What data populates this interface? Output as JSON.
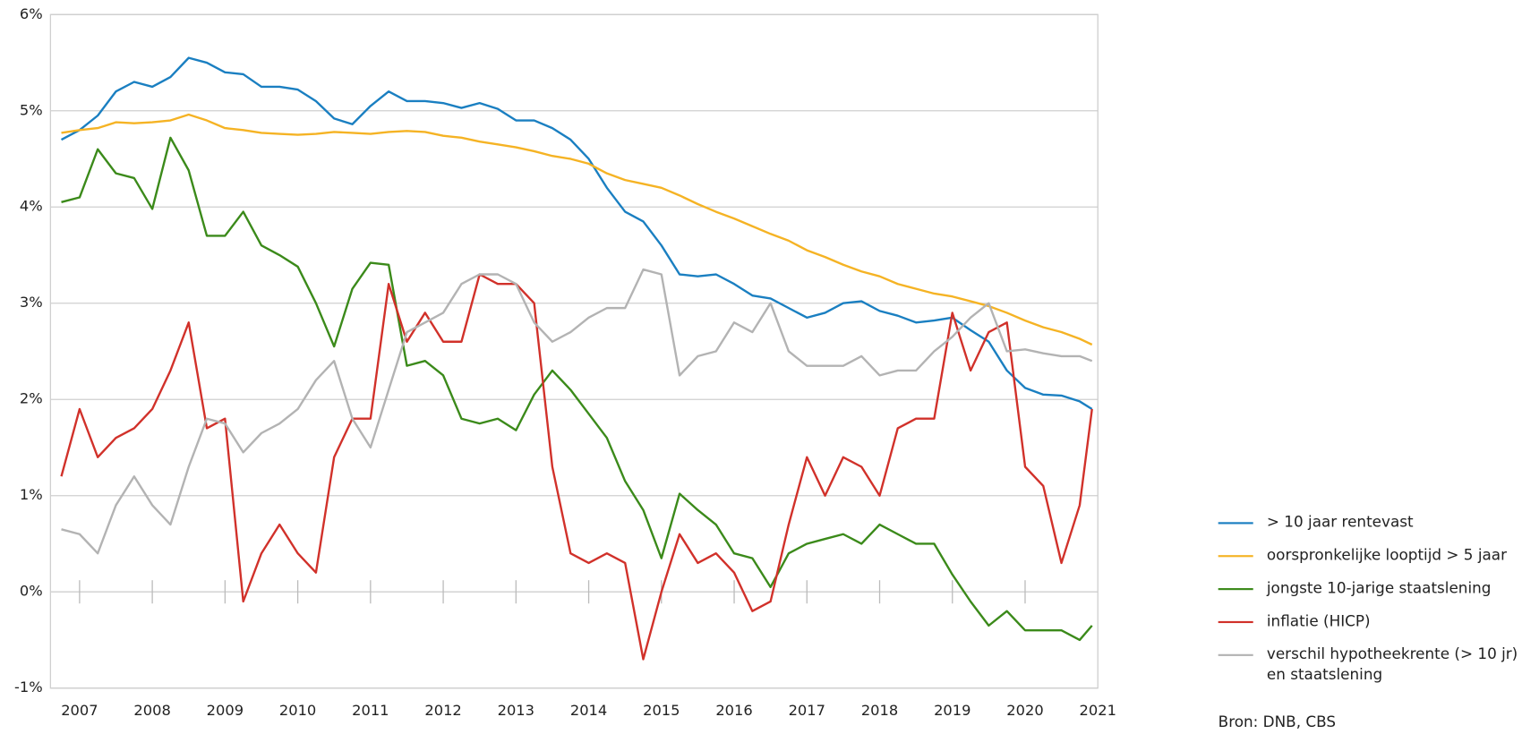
{
  "chart_data": {
    "type": "line",
    "source": "Bron: DNB, CBS",
    "x": [
      2006.75,
      2007,
      2007.25,
      2007.5,
      2007.75,
      2008,
      2008.25,
      2008.5,
      2008.75,
      2009,
      2009.25,
      2009.5,
      2009.75,
      2010,
      2010.25,
      2010.5,
      2010.75,
      2011,
      2011.25,
      2011.5,
      2011.75,
      2012,
      2012.25,
      2012.5,
      2012.75,
      2013,
      2013.25,
      2013.5,
      2013.75,
      2014,
      2014.25,
      2014.5,
      2014.75,
      2015,
      2015.25,
      2015.5,
      2015.75,
      2016,
      2016.25,
      2016.5,
      2016.75,
      2017,
      2017.25,
      2017.5,
      2017.75,
      2018,
      2018.25,
      2018.5,
      2018.75,
      2019,
      2019.25,
      2019.5,
      2019.75,
      2020,
      2020.25,
      2020.5,
      2020.75,
      2020.92
    ],
    "series": [
      {
        "name": "> 10 jaar rentevast",
        "color": "#1a7fc1",
        "values": [
          4.7,
          4.8,
          4.95,
          5.2,
          5.3,
          5.25,
          5.35,
          5.55,
          5.5,
          5.4,
          5.38,
          5.25,
          5.25,
          5.22,
          5.1,
          4.92,
          4.86,
          5.05,
          5.2,
          5.1,
          5.1,
          5.08,
          5.03,
          5.08,
          5.02,
          4.9,
          4.9,
          4.82,
          4.7,
          4.5,
          4.2,
          3.95,
          3.85,
          3.6,
          3.3,
          3.28,
          3.3,
          3.2,
          3.08,
          3.05,
          2.95,
          2.85,
          2.9,
          3.0,
          3.02,
          2.92,
          2.87,
          2.8,
          2.82,
          2.85,
          2.72,
          2.6,
          2.3,
          2.12,
          2.05,
          2.04,
          1.98,
          1.9
        ]
      },
      {
        "name": "oorspronkelijke looptijd > 5 jaar",
        "color": "#f5b324",
        "values": [
          4.77,
          4.8,
          4.82,
          4.88,
          4.87,
          4.88,
          4.9,
          4.96,
          4.9,
          4.82,
          4.8,
          4.77,
          4.76,
          4.75,
          4.76,
          4.78,
          4.77,
          4.76,
          4.78,
          4.79,
          4.78,
          4.74,
          4.72,
          4.68,
          4.65,
          4.62,
          4.58,
          4.53,
          4.5,
          4.45,
          4.35,
          4.28,
          4.24,
          4.2,
          4.12,
          4.03,
          3.95,
          3.88,
          3.8,
          3.72,
          3.65,
          3.55,
          3.48,
          3.4,
          3.33,
          3.28,
          3.2,
          3.15,
          3.1,
          3.07,
          3.02,
          2.97,
          2.9,
          2.82,
          2.75,
          2.7,
          2.63,
          2.57
        ]
      },
      {
        "name": "jongste 10-jarige staatslening",
        "color": "#3b8a1a",
        "values": [
          4.05,
          4.1,
          4.6,
          4.35,
          4.3,
          3.98,
          4.72,
          4.38,
          3.7,
          3.7,
          3.95,
          3.6,
          3.5,
          3.38,
          3.0,
          2.55,
          3.15,
          3.42,
          3.4,
          2.35,
          2.4,
          2.25,
          1.8,
          1.75,
          1.8,
          1.68,
          2.05,
          2.3,
          2.1,
          1.85,
          1.6,
          1.15,
          0.85,
          0.35,
          1.02,
          0.85,
          0.7,
          0.4,
          0.35,
          0.05,
          0.4,
          0.5,
          0.55,
          0.6,
          0.5,
          0.7,
          0.6,
          0.5,
          0.5,
          0.18,
          -0.1,
          -0.35,
          -0.2,
          -0.4,
          -0.4,
          -0.4,
          -0.5,
          -0.35
        ]
      },
      {
        "name": "inflatie (HICP)",
        "color": "#d1312a",
        "values": [
          1.2,
          1.9,
          1.4,
          1.6,
          1.7,
          1.9,
          2.3,
          2.8,
          1.7,
          1.8,
          -0.1,
          0.4,
          0.7,
          0.4,
          0.2,
          1.4,
          1.8,
          1.8,
          3.2,
          2.6,
          2.9,
          2.6,
          2.6,
          3.3,
          3.2,
          3.2,
          3.0,
          1.3,
          0.4,
          0.3,
          0.4,
          0.3,
          -0.7,
          0.0,
          0.6,
          0.3,
          0.4,
          0.2,
          -0.2,
          -0.1,
          0.7,
          1.4,
          1.0,
          1.4,
          1.3,
          1.0,
          1.7,
          1.8,
          1.8,
          2.9,
          2.3,
          2.7,
          2.8,
          1.3,
          1.1,
          0.3,
          0.9,
          1.9
        ]
      },
      {
        "name": "verschil hypotheekrente (> 10 jr) en staatslening",
        "color": "#b3b3b3",
        "values": [
          0.65,
          0.6,
          0.4,
          0.9,
          1.2,
          0.9,
          0.7,
          1.3,
          1.8,
          1.75,
          1.45,
          1.65,
          1.75,
          1.9,
          2.2,
          2.4,
          1.8,
          1.5,
          2.1,
          2.7,
          2.8,
          2.9,
          3.2,
          3.3,
          3.3,
          3.2,
          2.8,
          2.6,
          2.7,
          2.85,
          2.95,
          2.95,
          3.35,
          3.3,
          2.25,
          2.45,
          2.5,
          2.8,
          2.7,
          3.0,
          2.5,
          2.35,
          2.35,
          2.35,
          2.45,
          2.25,
          2.3,
          2.3,
          2.5,
          2.65,
          2.85,
          3.0,
          2.5,
          2.52,
          2.48,
          2.45,
          2.45,
          2.4
        ]
      }
    ],
    "xlim": [
      2006.6,
      2021
    ],
    "xticks": [
      2007,
      2008,
      2009,
      2010,
      2011,
      2012,
      2013,
      2014,
      2015,
      2016,
      2017,
      2018,
      2019,
      2020,
      2021
    ],
    "ylim": [
      -1,
      6
    ],
    "yticks": [
      {
        "value": -1,
        "label": "-1%"
      },
      {
        "value": 0,
        "label": "0%"
      },
      {
        "value": 1,
        "label": "1%"
      },
      {
        "value": 2,
        "label": "2%"
      },
      {
        "value": 3,
        "label": "3%"
      },
      {
        "value": 4,
        "label": "4%"
      },
      {
        "value": 5,
        "label": "5%"
      },
      {
        "value": 6,
        "label": "6%"
      }
    ],
    "grid": true,
    "legend": "right"
  }
}
